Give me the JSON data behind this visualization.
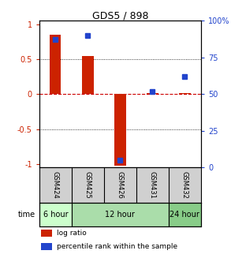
{
  "title": "GDS5 / 898",
  "samples": [
    "GSM424",
    "GSM425",
    "GSM426",
    "GSM431",
    "GSM432"
  ],
  "log_ratio": [
    0.85,
    0.55,
    -1.02,
    0.02,
    0.02
  ],
  "percentile_rank": [
    87,
    90,
    5,
    52,
    62
  ],
  "time_groups": [
    {
      "label": "6 hour",
      "samples": [
        0
      ],
      "color": "#ccffcc"
    },
    {
      "label": "12 hour",
      "samples": [
        1,
        2,
        3
      ],
      "color": "#aaddaa"
    },
    {
      "label": "24 hour",
      "samples": [
        4
      ],
      "color": "#88cc88"
    }
  ],
  "bar_color": "#cc2200",
  "scatter_color": "#2244cc",
  "ylim_left": [
    -1.05,
    1.05
  ],
  "ylim_right": [
    0,
    100
  ],
  "yticks_left": [
    -1,
    -0.5,
    0,
    0.5,
    1
  ],
  "yticks_right": [
    0,
    25,
    50,
    75,
    100
  ],
  "ytick_labels_left": [
    "-1",
    "-0.5",
    "0",
    "0.5",
    "1"
  ],
  "ytick_labels_right": [
    "0",
    "25",
    "50",
    "75",
    "100%"
  ],
  "legend_items": [
    {
      "label": "log ratio",
      "color": "#cc2200"
    },
    {
      "label": "percentile rank within the sample",
      "color": "#2244cc"
    }
  ],
  "bg_color": "#ffffff",
  "zero_line_color": "#cc0000",
  "sample_bg_color": "#d0d0d0",
  "time_label": "time"
}
